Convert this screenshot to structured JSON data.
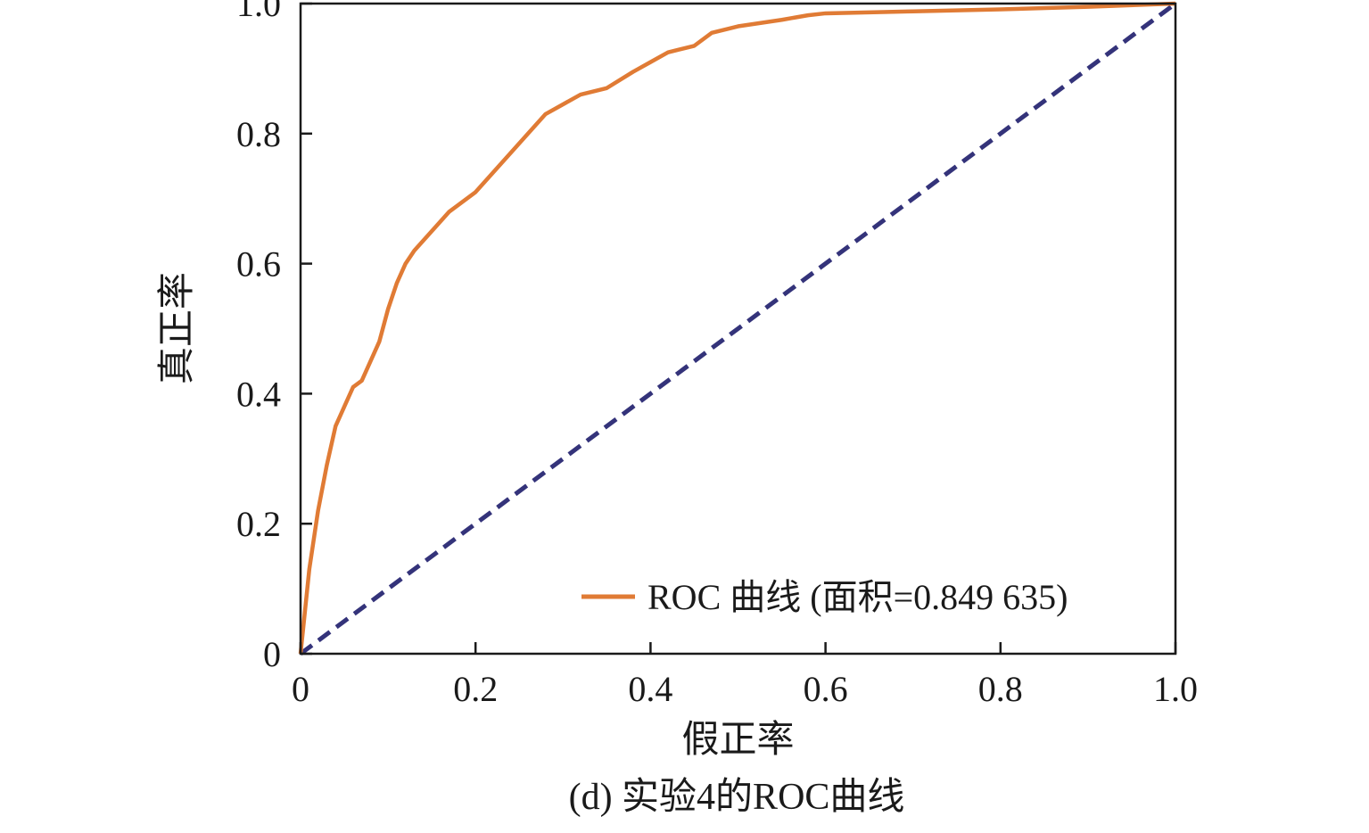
{
  "chart_data": {
    "type": "line",
    "title": "",
    "caption": "(d) 实验4的ROC曲线",
    "xlabel": "假正率",
    "ylabel": "真正率",
    "xlim": [
      0,
      1.0
    ],
    "ylim": [
      0,
      1.0
    ],
    "x_ticks": [
      0,
      0.2,
      0.4,
      0.6,
      0.8,
      1.0
    ],
    "x_tick_labels": [
      "0",
      "0.2",
      "0.4",
      "0.6",
      "0.8",
      "1.0"
    ],
    "y_ticks": [
      0,
      0.2,
      0.4,
      0.6,
      0.8,
      1.0
    ],
    "y_tick_labels": [
      "0",
      "0.2",
      "0.4",
      "0.6",
      "0.8",
      "1.0"
    ],
    "grid": false,
    "legend_position": "bottom-right",
    "series": [
      {
        "name": "ROC 曲线 (面积=0.849 635)",
        "color": "#e07b35",
        "style": "solid",
        "x": [
          0,
          0.01,
          0.02,
          0.03,
          0.04,
          0.05,
          0.06,
          0.07,
          0.08,
          0.09,
          0.1,
          0.11,
          0.12,
          0.13,
          0.15,
          0.17,
          0.2,
          0.22,
          0.24,
          0.26,
          0.28,
          0.3,
          0.32,
          0.35,
          0.38,
          0.4,
          0.42,
          0.45,
          0.47,
          0.5,
          0.55,
          0.58,
          0.6,
          0.7,
          0.8,
          0.9,
          1.0
        ],
        "y": [
          0,
          0.13,
          0.22,
          0.29,
          0.35,
          0.38,
          0.41,
          0.42,
          0.45,
          0.48,
          0.53,
          0.57,
          0.6,
          0.62,
          0.65,
          0.68,
          0.71,
          0.74,
          0.77,
          0.8,
          0.83,
          0.845,
          0.86,
          0.87,
          0.895,
          0.91,
          0.925,
          0.935,
          0.955,
          0.965,
          0.975,
          0.982,
          0.985,
          0.988,
          0.991,
          0.995,
          1.0
        ]
      },
      {
        "name": "",
        "color": "#34337a",
        "style": "dashed",
        "x": [
          0,
          1.0
        ],
        "y": [
          0,
          1.0
        ]
      }
    ]
  }
}
